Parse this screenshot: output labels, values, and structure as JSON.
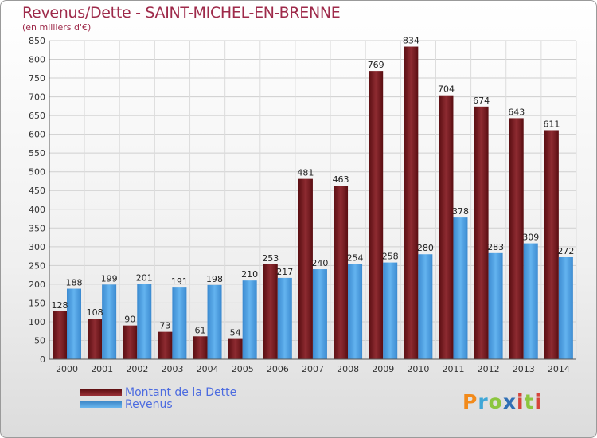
{
  "title": "Revenus/Dette - SAINT-MICHEL-EN-BRENNE",
  "subtitle": "(en milliers d'€)",
  "legend": {
    "debt_label": "Montant de la Dette",
    "revenue_label": "Revenus"
  },
  "logo": {
    "text": "Proxiti"
  },
  "colors": {
    "debt": "#7a1f24",
    "revenue": "#4aa3e6",
    "title": "#9e2a4a",
    "legend_text": "#4c6be0"
  },
  "chart_data": {
    "type": "bar",
    "categories": [
      "2000",
      "2001",
      "2002",
      "2003",
      "2004",
      "2005",
      "2006",
      "2007",
      "2008",
      "2009",
      "2010",
      "2011",
      "2012",
      "2013",
      "2014"
    ],
    "series": [
      {
        "name": "Montant de la Dette",
        "values": [
          128,
          108,
          90,
          73,
          61,
          54,
          253,
          481,
          463,
          769,
          834,
          704,
          674,
          643,
          611
        ]
      },
      {
        "name": "Revenus",
        "values": [
          188,
          199,
          201,
          191,
          198,
          210,
          217,
          240,
          254,
          258,
          280,
          378,
          283,
          309,
          272
        ]
      }
    ],
    "ylim": [
      0,
      850
    ],
    "ytick_step": 50,
    "grid": true,
    "legend_position": "bottom-left"
  }
}
